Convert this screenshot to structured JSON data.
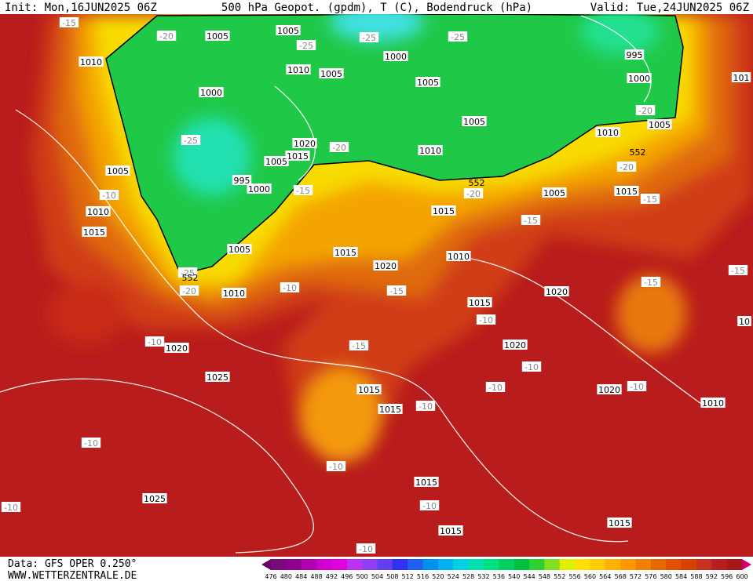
{
  "header": {
    "init": "Init: Mon,16JUN2025 06Z",
    "title": "500 hPa Geopot. (gpdm), T (C), Bodendruck (hPa)",
    "valid": "Valid: Tue,24JUN2025 06Z"
  },
  "footer": {
    "data": "Data: GFS OPER 0.250°",
    "site": "WWW.WETTERZENTRALE.DE"
  },
  "legend": {
    "ticks": [
      476,
      480,
      484,
      488,
      492,
      496,
      500,
      504,
      508,
      512,
      516,
      520,
      524,
      528,
      532,
      536,
      540,
      544,
      548,
      552,
      556,
      560,
      564,
      568,
      572,
      576,
      580,
      584,
      588,
      592,
      596,
      600
    ],
    "colors": [
      "#6a006a",
      "#7a0a7a",
      "#900090",
      "#b000b0",
      "#d000d0",
      "#e000e0",
      "#c030f0",
      "#9040f0",
      "#6040f0",
      "#3030f0",
      "#2060f0",
      "#0090f0",
      "#00b0f0",
      "#00d0e0",
      "#00e0b0",
      "#00e080",
      "#00d060",
      "#00c040",
      "#30d030",
      "#80e020",
      "#e0f000",
      "#ffe000",
      "#ffcc00",
      "#ffb000",
      "#ff9800",
      "#f08000",
      "#e86800",
      "#e05000",
      "#d84000",
      "#c83020",
      "#b82020",
      "#a81818",
      "#cc0070"
    ]
  },
  "map": {
    "isobar_labels": [
      "1005",
      "1005",
      "1000",
      "1010",
      "1010",
      "1005",
      "1005",
      "995",
      "1000",
      "1000",
      "1005",
      "1010",
      "1005",
      "1020",
      "1015",
      "1005",
      "1010",
      "1005",
      "995",
      "1000",
      "1005",
      "1015",
      "1010",
      "1015",
      "1015",
      "1005",
      "1015",
      "1010",
      "1020",
      "1010",
      "1015",
      "1020",
      "1020",
      "1020",
      "1025",
      "1015",
      "1015",
      "1020",
      "1010",
      "1025",
      "1015",
      "1015",
      "1015",
      "101",
      "10"
    ],
    "isotherm_labels": [
      "-15",
      "-20",
      "-25",
      "-25",
      "-25",
      "-20",
      "-25",
      "-20",
      "-20",
      "-15",
      "-20",
      "-10",
      "-15",
      "-15",
      "-15",
      "-25",
      "-20",
      "-10",
      "-15",
      "-10",
      "-10",
      "-15",
      "-10",
      "-10",
      "-10",
      "-10",
      "-10",
      "-10",
      "-10",
      "-10",
      "-10",
      "-15"
    ],
    "height_labels": [
      "552",
      "552",
      "552"
    ]
  }
}
